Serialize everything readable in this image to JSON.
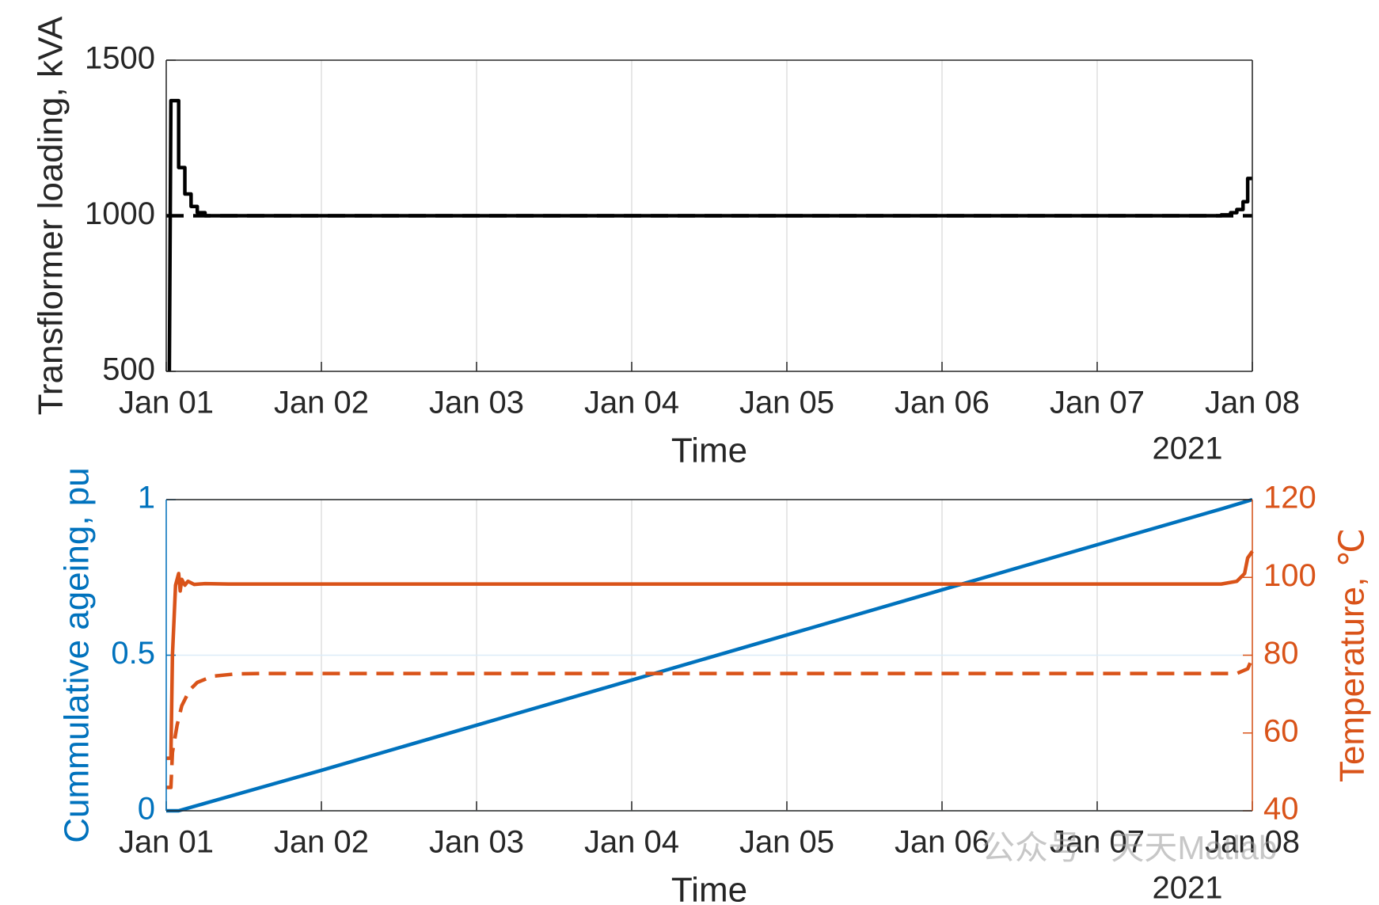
{
  "chart_data": [
    {
      "type": "line",
      "xlabel": "Time",
      "ylabel": "Transflormer loading, kVA",
      "x_year_label": "2021",
      "xlim": [
        0,
        7
      ],
      "xticks": [
        {
          "value": 0,
          "label": "Jan 01"
        },
        {
          "value": 1,
          "label": "Jan 02"
        },
        {
          "value": 2,
          "label": "Jan 03"
        },
        {
          "value": 3,
          "label": "Jan 04"
        },
        {
          "value": 4,
          "label": "Jan 05"
        },
        {
          "value": 5,
          "label": "Jan 06"
        },
        {
          "value": 6,
          "label": "Jan 07"
        },
        {
          "value": 7,
          "label": "Jan 08"
        }
      ],
      "ylim": [
        500,
        1500
      ],
      "yticks": [
        500,
        1000,
        1500
      ],
      "grid": "x",
      "axis_color": "#262626",
      "y_color": "#262626",
      "series": [
        {
          "color": "#000000",
          "line_style": "solid",
          "x": [
            0.02,
            0.02,
            0.03,
            0.08,
            0.08,
            0.12,
            0.12,
            0.16,
            0.16,
            0.2,
            0.2,
            0.25,
            0.25,
            6.8,
            6.8,
            6.86,
            6.86,
            6.9,
            6.9,
            6.94,
            6.94,
            6.97,
            6.97,
            7
          ],
          "values": [
            500,
            500,
            1370,
            1370,
            1155,
            1155,
            1070,
            1070,
            1030,
            1030,
            1010,
            1010,
            1000,
            1000,
            1003,
            1003,
            1010,
            1010,
            1020,
            1020,
            1045,
            1045,
            1120,
            1120
          ]
        },
        {
          "color": "#000000",
          "line_style": "dashed",
          "x": [
            0,
            7
          ],
          "values": [
            1000,
            1000
          ]
        }
      ]
    },
    {
      "type": "line",
      "xlabel": "Time",
      "ylabel": "Cummulative ageing, pu",
      "y2label": "Temperature, ℃",
      "x_year_label": "2021",
      "xlim": [
        0,
        7
      ],
      "xticks": [
        {
          "value": 0,
          "label": "Jan 01"
        },
        {
          "value": 1,
          "label": "Jan 02"
        },
        {
          "value": 2,
          "label": "Jan 03"
        },
        {
          "value": 3,
          "label": "Jan 04"
        },
        {
          "value": 4,
          "label": "Jan 05"
        },
        {
          "value": 5,
          "label": "Jan 06"
        },
        {
          "value": 6,
          "label": "Jan 07"
        },
        {
          "value": 7,
          "label": "Jan 08"
        }
      ],
      "ylim": [
        0,
        1
      ],
      "yticks": [
        0,
        0.5,
        1
      ],
      "y2lim": [
        40,
        120
      ],
      "y2ticks": [
        40,
        60,
        80,
        100,
        120
      ],
      "grid": "xy",
      "axis_color": "#262626",
      "y_color": "#0072BD",
      "y2_color": "#D95319",
      "watermark": "公众号 · 天天Matlab",
      "series": [
        {
          "color": "#0072BD",
          "line_style": "solid",
          "x": [
            0,
            0.08,
            1,
            2,
            3,
            4,
            5,
            6,
            6.8,
            7
          ],
          "values": [
            0,
            0,
            0.13,
            0.275,
            0.42,
            0.565,
            0.71,
            0.855,
            0.97,
            1
          ]
        },
        {
          "color": "#D95319",
          "line_style": "solid",
          "axis": "y2",
          "x": [
            0,
            0.03,
            0.04,
            0.06,
            0.08,
            0.09,
            0.1,
            0.12,
            0.14,
            0.18,
            0.25,
            0.4,
            6.8,
            6.9,
            6.95,
            6.97,
            7
          ],
          "values": [
            53.5,
            53.5,
            80,
            98,
            101,
            96.5,
            99.5,
            98,
            99,
            98.2,
            98.4,
            98.3,
            98.3,
            99,
            101,
            105,
            106.7
          ]
        },
        {
          "color": "#D95319",
          "line_style": "dashed",
          "axis": "y2",
          "x": [
            0,
            0.03,
            0.04,
            0.07,
            0.1,
            0.15,
            0.2,
            0.3,
            0.45,
            0.6,
            6.9,
            6.97,
            7
          ],
          "values": [
            46,
            46,
            55,
            62,
            67,
            71,
            73,
            74.6,
            75.2,
            75.3,
            75.3,
            76.5,
            79.3
          ]
        }
      ]
    }
  ]
}
